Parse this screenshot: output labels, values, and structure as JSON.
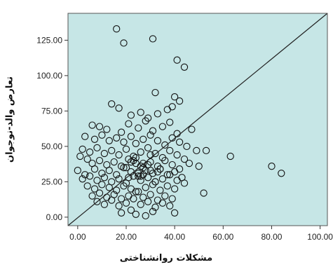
{
  "chart_data": {
    "type": "scatter",
    "xlabel": "مشکلات روانشناختی",
    "ylabel": "تعارض والد-نوجوان",
    "xlim": [
      -4,
      103
    ],
    "ylim": [
      -6,
      144
    ],
    "x_ticks": [
      "0.00",
      "20.00",
      "40.00",
      "60.00",
      "80.00",
      "100.00"
    ],
    "y_ticks": [
      "0.00",
      "25.00",
      "50.00",
      "75.00",
      "100.00",
      "125.00"
    ],
    "grid": false,
    "legend": "none",
    "background_color": "#c6e6e6",
    "marker_color": "#111111",
    "reference_line": {
      "from": [
        -4,
        -6
      ],
      "to": [
        103,
        144
      ],
      "color": "#222222"
    },
    "points": {
      "x": [
        16,
        19,
        31,
        41,
        44,
        32,
        40,
        42,
        39,
        14,
        17,
        22,
        26,
        29,
        33,
        37,
        9,
        6,
        12,
        18,
        21,
        25,
        28,
        31,
        35,
        38,
        41,
        47,
        3,
        7,
        10,
        13,
        16,
        19,
        22,
        24,
        27,
        30,
        33,
        36,
        39,
        42,
        45,
        49,
        2,
        5,
        8,
        11,
        14,
        17,
        20,
        23,
        26,
        29,
        32,
        35,
        38,
        41,
        44,
        53,
        63,
        80,
        84,
        1,
        4,
        6,
        9,
        12,
        15,
        18,
        21,
        24,
        27,
        30,
        33,
        36,
        39,
        42,
        46,
        50,
        0,
        3,
        7,
        10,
        13,
        16,
        19,
        22,
        25,
        28,
        31,
        34,
        37,
        40,
        43,
        2,
        5,
        8,
        11,
        14,
        17,
        20,
        23,
        26,
        29,
        32,
        35,
        38,
        41,
        44,
        4,
        7,
        10,
        13,
        16,
        19,
        22,
        25,
        28,
        31,
        34,
        37,
        40,
        52,
        6,
        9,
        12,
        15,
        18,
        21,
        24,
        27,
        30,
        33,
        36,
        39,
        8,
        11,
        14,
        17,
        20,
        23,
        26,
        29,
        32,
        35,
        38,
        18,
        24,
        31,
        40,
        28,
        22,
        20,
        27,
        33,
        26,
        23,
        30,
        25,
        29,
        21,
        34,
        24,
        27,
        32,
        22,
        26,
        30
      ],
      "y": [
        133,
        123,
        126,
        111,
        106,
        88,
        85,
        82,
        78,
        80,
        77,
        72,
        74,
        70,
        73,
        76,
        64,
        65,
        62,
        60,
        66,
        63,
        68,
        61,
        64,
        67,
        59,
        62,
        57,
        55,
        58,
        54,
        56,
        53,
        57,
        52,
        55,
        58,
        54,
        51,
        56,
        53,
        50,
        47,
        48,
        46,
        49,
        45,
        47,
        44,
        48,
        43,
        46,
        49,
        45,
        42,
        47,
        44,
        41,
        47,
        43,
        36,
        31,
        43,
        41,
        38,
        40,
        37,
        39,
        36,
        41,
        38,
        35,
        39,
        36,
        40,
        37,
        34,
        38,
        36,
        33,
        30,
        34,
        31,
        33,
        30,
        35,
        32,
        29,
        33,
        31,
        34,
        30,
        32,
        28,
        27,
        29,
        26,
        28,
        25,
        27,
        24,
        29,
        26,
        28,
        25,
        27,
        30,
        26,
        24,
        22,
        20,
        23,
        21,
        19,
        22,
        20,
        18,
        21,
        23,
        19,
        22,
        20,
        17,
        15,
        17,
        14,
        16,
        13,
        15,
        18,
        14,
        16,
        12,
        15,
        13,
        11,
        9,
        12,
        8,
        10,
        13,
        9,
        11,
        7,
        10,
        8,
        3,
        2,
        4,
        3,
        1,
        5,
        35,
        38,
        32,
        36,
        40,
        33,
        31,
        37,
        28,
        34,
        42,
        30,
        25,
        39,
        29,
        44
      ],
      "marker": "circle-open"
    }
  }
}
